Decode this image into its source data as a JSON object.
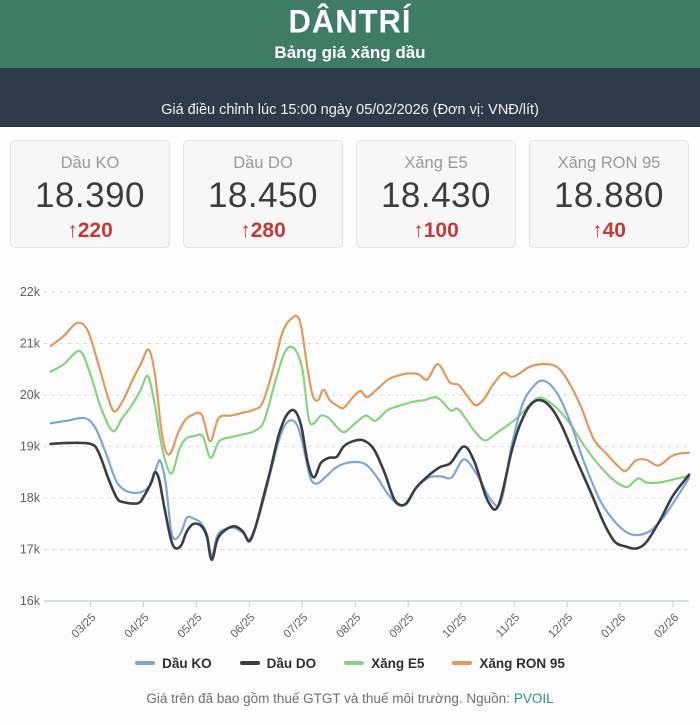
{
  "header": {
    "logo": "DÂNTRÍ",
    "subtitle": "Bảng giá xăng dầu"
  },
  "info_bar": {
    "text": "Giá điều chỉnh lúc 15:00 ngày 05/02/2026 (Đơn vị: VNĐ/lít)"
  },
  "cards": [
    {
      "label": "Dầu KO",
      "price": "18.390",
      "change": "↑220",
      "direction": "up"
    },
    {
      "label": "Dầu DO",
      "price": "18.450",
      "change": "↑280",
      "direction": "up"
    },
    {
      "label": "Xăng E5",
      "price": "18.430",
      "change": "↑100",
      "direction": "up"
    },
    {
      "label": "Xăng RON 95",
      "price": "18.880",
      "change": "↑40",
      "direction": "up"
    }
  ],
  "footer": {
    "note": "Giá trên đã bao gồm thuế GTGT và thuế môi trường. Nguồn:",
    "source": "PVOIL"
  },
  "colors": {
    "header_green": "#3e7c66",
    "bar_dark": "#2e3a49",
    "change_red": "#c23b38",
    "source_link": "#2d9673",
    "grid": "#d9d9d9",
    "axis": "#c7d7e0",
    "tick_text": "#5f6368"
  },
  "chart_data": {
    "type": "line",
    "title": "",
    "xlabel": "",
    "ylabel": "",
    "unit": "nghìn VNĐ/lít",
    "grid": true,
    "legend_position": "bottom",
    "x_tick_labels": [
      "03/25",
      "04/25",
      "05/25",
      "06/25",
      "07/25",
      "08/25",
      "09/25",
      "10/25",
      "11/25",
      "12/25",
      "01/26",
      "02/26"
    ],
    "y_tick_labels": [
      "16k",
      "17k",
      "18k",
      "19k",
      "20k",
      "21k",
      "22k"
    ],
    "ylim_k": [
      16,
      22
    ],
    "x_domain_months": [
      -0.8,
      11.3
    ],
    "x_note": "x = months relative to the 03/25 tick; y = price in thousand VND per litre",
    "series": [
      {
        "name": "Dầu KO",
        "color": "#7ea6d9",
        "points": [
          [
            -0.75,
            19.45
          ],
          [
            -0.45,
            19.5
          ],
          [
            -0.1,
            19.55
          ],
          [
            0.1,
            19.35
          ],
          [
            0.3,
            18.85
          ],
          [
            0.48,
            18.35
          ],
          [
            0.65,
            18.15
          ],
          [
            0.9,
            18.1
          ],
          [
            1.1,
            18.22
          ],
          [
            1.25,
            18.6
          ],
          [
            1.32,
            18.72
          ],
          [
            1.42,
            18.3
          ],
          [
            1.52,
            17.4
          ],
          [
            1.6,
            17.2
          ],
          [
            1.72,
            17.35
          ],
          [
            1.82,
            17.62
          ],
          [
            1.95,
            17.6
          ],
          [
            2.08,
            17.52
          ],
          [
            2.2,
            17.3
          ],
          [
            2.29,
            16.88
          ],
          [
            2.4,
            17.28
          ],
          [
            2.55,
            17.4
          ],
          [
            2.72,
            17.42
          ],
          [
            2.88,
            17.32
          ],
          [
            3.0,
            17.2
          ],
          [
            3.12,
            17.45
          ],
          [
            3.28,
            18.0
          ],
          [
            3.45,
            18.7
          ],
          [
            3.6,
            19.25
          ],
          [
            3.75,
            19.5
          ],
          [
            3.9,
            19.42
          ],
          [
            4.02,
            19.0
          ],
          [
            4.15,
            18.4
          ],
          [
            4.28,
            18.28
          ],
          [
            4.45,
            18.42
          ],
          [
            4.62,
            18.58
          ],
          [
            4.8,
            18.67
          ],
          [
            5.0,
            18.7
          ],
          [
            5.2,
            18.65
          ],
          [
            5.4,
            18.42
          ],
          [
            5.6,
            18.1
          ],
          [
            5.8,
            17.88
          ],
          [
            5.95,
            17.9
          ],
          [
            6.15,
            18.2
          ],
          [
            6.4,
            18.4
          ],
          [
            6.62,
            18.42
          ],
          [
            6.82,
            18.4
          ],
          [
            7.05,
            18.75
          ],
          [
            7.3,
            18.45
          ],
          [
            7.55,
            17.98
          ],
          [
            7.75,
            17.92
          ],
          [
            7.95,
            19.0
          ],
          [
            8.15,
            19.8
          ],
          [
            8.35,
            20.15
          ],
          [
            8.55,
            20.28
          ],
          [
            8.8,
            20.05
          ],
          [
            9.05,
            19.5
          ],
          [
            9.3,
            18.75
          ],
          [
            9.6,
            18.0
          ],
          [
            9.85,
            17.6
          ],
          [
            10.1,
            17.35
          ],
          [
            10.3,
            17.28
          ],
          [
            10.55,
            17.35
          ],
          [
            10.8,
            17.6
          ],
          [
            11.0,
            17.9
          ],
          [
            11.3,
            18.39
          ]
        ]
      },
      {
        "name": "Dầu DO",
        "color": "#393e44",
        "points": [
          [
            -0.75,
            19.05
          ],
          [
            -0.4,
            19.07
          ],
          [
            0.0,
            19.05
          ],
          [
            0.15,
            18.9
          ],
          [
            0.35,
            18.35
          ],
          [
            0.5,
            18.0
          ],
          [
            0.62,
            17.92
          ],
          [
            0.9,
            17.9
          ],
          [
            1.02,
            18.05
          ],
          [
            1.15,
            18.3
          ],
          [
            1.22,
            18.5
          ],
          [
            1.3,
            18.35
          ],
          [
            1.4,
            17.8
          ],
          [
            1.55,
            17.1
          ],
          [
            1.7,
            17.06
          ],
          [
            1.82,
            17.35
          ],
          [
            1.95,
            17.5
          ],
          [
            2.1,
            17.45
          ],
          [
            2.2,
            17.25
          ],
          [
            2.29,
            16.8
          ],
          [
            2.4,
            17.2
          ],
          [
            2.55,
            17.38
          ],
          [
            2.72,
            17.45
          ],
          [
            2.88,
            17.35
          ],
          [
            3.0,
            17.16
          ],
          [
            3.12,
            17.45
          ],
          [
            3.25,
            17.95
          ],
          [
            3.4,
            18.55
          ],
          [
            3.55,
            19.2
          ],
          [
            3.7,
            19.6
          ],
          [
            3.85,
            19.7
          ],
          [
            3.98,
            19.4
          ],
          [
            4.1,
            18.7
          ],
          [
            4.22,
            18.4
          ],
          [
            4.35,
            18.68
          ],
          [
            4.5,
            18.78
          ],
          [
            4.65,
            18.8
          ],
          [
            4.78,
            19.0
          ],
          [
            4.95,
            19.1
          ],
          [
            5.15,
            19.12
          ],
          [
            5.35,
            18.95
          ],
          [
            5.55,
            18.5
          ],
          [
            5.75,
            17.95
          ],
          [
            5.95,
            17.88
          ],
          [
            6.15,
            18.2
          ],
          [
            6.4,
            18.45
          ],
          [
            6.6,
            18.6
          ],
          [
            6.8,
            18.68
          ],
          [
            7.05,
            19.0
          ],
          [
            7.25,
            18.7
          ],
          [
            7.5,
            17.95
          ],
          [
            7.7,
            17.85
          ],
          [
            7.95,
            18.9
          ],
          [
            8.1,
            19.4
          ],
          [
            8.3,
            19.8
          ],
          [
            8.5,
            19.9
          ],
          [
            8.7,
            19.75
          ],
          [
            8.9,
            19.4
          ],
          [
            9.15,
            18.8
          ],
          [
            9.45,
            18.1
          ],
          [
            9.7,
            17.5
          ],
          [
            9.9,
            17.15
          ],
          [
            10.1,
            17.06
          ],
          [
            10.3,
            17.02
          ],
          [
            10.5,
            17.15
          ],
          [
            10.77,
            17.6
          ],
          [
            11.0,
            18.05
          ],
          [
            11.3,
            18.45
          ]
        ]
      },
      {
        "name": "Xăng E5",
        "color": "#87d47f",
        "points": [
          [
            -0.75,
            20.45
          ],
          [
            -0.5,
            20.6
          ],
          [
            -0.2,
            20.85
          ],
          [
            0.0,
            20.4
          ],
          [
            0.2,
            19.75
          ],
          [
            0.42,
            19.3
          ],
          [
            0.6,
            19.55
          ],
          [
            0.78,
            19.8
          ],
          [
            0.95,
            20.1
          ],
          [
            1.08,
            20.37
          ],
          [
            1.2,
            19.9
          ],
          [
            1.33,
            19.1
          ],
          [
            1.45,
            18.6
          ],
          [
            1.55,
            18.5
          ],
          [
            1.68,
            18.95
          ],
          [
            1.8,
            19.15
          ],
          [
            1.95,
            19.2
          ],
          [
            2.12,
            19.2
          ],
          [
            2.27,
            18.78
          ],
          [
            2.43,
            19.1
          ],
          [
            2.65,
            19.18
          ],
          [
            2.9,
            19.24
          ],
          [
            3.1,
            19.3
          ],
          [
            3.28,
            19.5
          ],
          [
            3.5,
            20.3
          ],
          [
            3.68,
            20.85
          ],
          [
            3.85,
            20.9
          ],
          [
            4.0,
            20.5
          ],
          [
            4.12,
            19.55
          ],
          [
            4.22,
            19.45
          ],
          [
            4.35,
            19.6
          ],
          [
            4.5,
            19.55
          ],
          [
            4.68,
            19.35
          ],
          [
            4.8,
            19.28
          ],
          [
            5.0,
            19.45
          ],
          [
            5.2,
            19.6
          ],
          [
            5.38,
            19.5
          ],
          [
            5.6,
            19.7
          ],
          [
            5.8,
            19.78
          ],
          [
            6.1,
            19.87
          ],
          [
            6.3,
            19.9
          ],
          [
            6.55,
            19.95
          ],
          [
            6.8,
            19.7
          ],
          [
            6.95,
            19.72
          ],
          [
            7.25,
            19.3
          ],
          [
            7.45,
            19.12
          ],
          [
            7.65,
            19.25
          ],
          [
            8.05,
            19.55
          ],
          [
            8.3,
            19.82
          ],
          [
            8.5,
            19.95
          ],
          [
            8.8,
            19.75
          ],
          [
            9.05,
            19.45
          ],
          [
            9.3,
            19.05
          ],
          [
            9.55,
            18.7
          ],
          [
            9.8,
            18.42
          ],
          [
            10.0,
            18.26
          ],
          [
            10.15,
            18.22
          ],
          [
            10.34,
            18.38
          ],
          [
            10.5,
            18.3
          ],
          [
            10.75,
            18.3
          ],
          [
            11.0,
            18.36
          ],
          [
            11.3,
            18.43
          ]
        ]
      },
      {
        "name": "Xăng RON 95",
        "color": "#e19a5b",
        "points": [
          [
            -0.75,
            20.95
          ],
          [
            -0.5,
            21.15
          ],
          [
            -0.25,
            21.4
          ],
          [
            -0.05,
            21.25
          ],
          [
            0.15,
            20.6
          ],
          [
            0.32,
            20.0
          ],
          [
            0.45,
            19.68
          ],
          [
            0.62,
            19.9
          ],
          [
            0.8,
            20.3
          ],
          [
            0.95,
            20.6
          ],
          [
            1.1,
            20.88
          ],
          [
            1.22,
            20.4
          ],
          [
            1.33,
            19.4
          ],
          [
            1.42,
            18.92
          ],
          [
            1.52,
            18.88
          ],
          [
            1.65,
            19.25
          ],
          [
            1.78,
            19.5
          ],
          [
            1.9,
            19.6
          ],
          [
            2.1,
            19.62
          ],
          [
            2.26,
            19.1
          ],
          [
            2.42,
            19.55
          ],
          [
            2.65,
            19.6
          ],
          [
            2.9,
            19.66
          ],
          [
            3.1,
            19.72
          ],
          [
            3.25,
            19.85
          ],
          [
            3.45,
            20.5
          ],
          [
            3.62,
            21.2
          ],
          [
            3.78,
            21.47
          ],
          [
            3.95,
            21.45
          ],
          [
            4.1,
            20.5
          ],
          [
            4.2,
            19.98
          ],
          [
            4.3,
            19.9
          ],
          [
            4.4,
            20.1
          ],
          [
            4.52,
            19.9
          ],
          [
            4.65,
            19.8
          ],
          [
            4.78,
            19.75
          ],
          [
            4.95,
            19.95
          ],
          [
            5.1,
            20.08
          ],
          [
            5.22,
            19.96
          ],
          [
            5.42,
            20.12
          ],
          [
            5.62,
            20.3
          ],
          [
            5.82,
            20.38
          ],
          [
            6.02,
            20.42
          ],
          [
            6.2,
            20.4
          ],
          [
            6.36,
            20.3
          ],
          [
            6.56,
            20.6
          ],
          [
            6.78,
            20.25
          ],
          [
            6.95,
            20.2
          ],
          [
            7.1,
            20.0
          ],
          [
            7.28,
            19.8
          ],
          [
            7.45,
            19.95
          ],
          [
            7.6,
            20.2
          ],
          [
            7.8,
            20.43
          ],
          [
            7.95,
            20.35
          ],
          [
            8.1,
            20.42
          ],
          [
            8.3,
            20.55
          ],
          [
            8.55,
            20.6
          ],
          [
            8.8,
            20.55
          ],
          [
            9.0,
            20.3
          ],
          [
            9.25,
            19.8
          ],
          [
            9.5,
            19.15
          ],
          [
            9.77,
            18.83
          ],
          [
            9.98,
            18.6
          ],
          [
            10.11,
            18.53
          ],
          [
            10.3,
            18.73
          ],
          [
            10.5,
            18.74
          ],
          [
            10.72,
            18.63
          ],
          [
            10.95,
            18.8
          ],
          [
            11.1,
            18.86
          ],
          [
            11.3,
            18.88
          ]
        ]
      }
    ]
  }
}
